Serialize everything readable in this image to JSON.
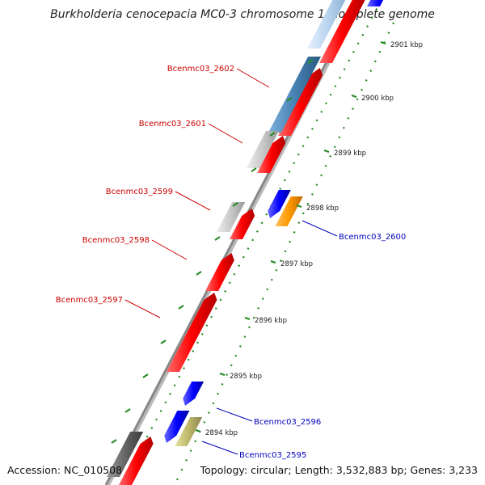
{
  "title": "Burkholderia cenocepacia MC0-3 chromosome 1, complete genome",
  "footer": {
    "accession": "Accession: NC_010508",
    "topology": "Topology: circular; Length: 3,532,883 bp; Genes: 3,233"
  },
  "ticks": [
    "2894 kbp",
    "2895 kbp",
    "2896 kbp",
    "2897 kbp",
    "2898 kbp",
    "2899 kbp",
    "2900 kbp",
    "2901 kbp"
  ],
  "genes_forward": [
    "Bcenmc03_2602",
    "Bcenmc03_2601",
    "Bcenmc03_2599",
    "Bcenmc03_2598",
    "Bcenmc03_2597"
  ],
  "genes_reverse": [
    "Bcenmc03_2600",
    "Bcenmc03_2596",
    "Bcenmc03_2595"
  ],
  "colors": {
    "forward": "#ff0000",
    "reverse": "#0000ff",
    "steelblue": "#4682b4",
    "gray": "#c8c8c8",
    "orange": "#ff9900",
    "khaki": "#bdb76b",
    "dim": "#666666",
    "backbone": "#888888",
    "dots": "#228b22"
  }
}
